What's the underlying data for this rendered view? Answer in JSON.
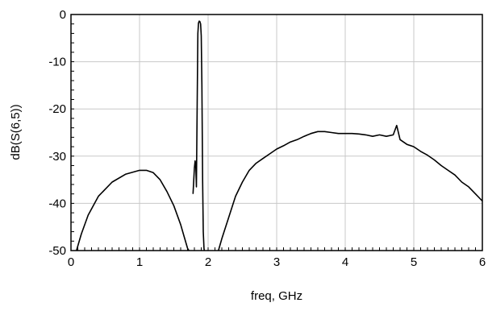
{
  "chart_data": {
    "type": "line",
    "xlabel": "freq, GHz",
    "ylabel": "dB(S(6,5))",
    "xlim": [
      0,
      6
    ],
    "ylim": [
      -50,
      0
    ],
    "x_ticks": [
      "0",
      "1",
      "2",
      "3",
      "4",
      "5",
      "6"
    ],
    "y_ticks": [
      "0",
      "-10",
      "-20",
      "-30",
      "-40",
      "-50"
    ],
    "grid": true,
    "series": [
      {
        "x": [
          0.08,
          0.15,
          0.25,
          0.4,
          0.6,
          0.8,
          1.0,
          1.1,
          1.2,
          1.3,
          1.4,
          1.5,
          1.6,
          1.65,
          1.7,
          1.72
        ],
        "y": [
          -50,
          -46.5,
          -42.5,
          -38.5,
          -35.5,
          -33.8,
          -33.0,
          -33.0,
          -33.5,
          -35.0,
          -37.5,
          -40.5,
          -44.5,
          -47.0,
          -49.5,
          -50
        ]
      },
      {
        "x": [
          1.78,
          1.8,
          1.81,
          1.82,
          1.83,
          1.84,
          1.85,
          1.86,
          1.87,
          1.88,
          1.89,
          1.9,
          1.91,
          1.92,
          1.93,
          1.94,
          1.945
        ],
        "y": [
          -38.0,
          -32.5,
          -31.0,
          -32.0,
          -36.5,
          -20.0,
          -4.0,
          -1.8,
          -1.4,
          -1.5,
          -2.0,
          -4.5,
          -15.0,
          -35.0,
          -46.0,
          -49.5,
          -50
        ]
      },
      {
        "x": [
          2.15,
          2.2,
          2.3,
          2.4,
          2.5,
          2.6,
          2.7,
          2.8,
          2.9,
          3.0,
          3.1,
          3.2,
          3.3,
          3.4,
          3.5,
          3.6,
          3.7,
          3.8,
          3.9,
          4.0,
          4.1,
          4.2,
          4.3,
          4.4,
          4.5,
          4.6,
          4.7,
          4.75,
          4.8,
          4.9,
          5.0,
          5.1,
          5.2,
          5.3,
          5.4,
          5.5,
          5.6,
          5.7,
          5.8,
          5.9,
          6.0
        ],
        "y": [
          -50,
          -47.5,
          -43.0,
          -38.5,
          -35.5,
          -33.0,
          -31.5,
          -30.5,
          -29.5,
          -28.5,
          -27.8,
          -27.0,
          -26.5,
          -25.8,
          -25.2,
          -24.8,
          -24.8,
          -25.0,
          -25.2,
          -25.2,
          -25.2,
          -25.3,
          -25.5,
          -25.8,
          -25.5,
          -25.8,
          -25.5,
          -23.5,
          -26.5,
          -27.5,
          -28.0,
          -29.0,
          -29.8,
          -30.8,
          -32.0,
          -33.0,
          -34.0,
          -35.5,
          -36.5,
          -38.0,
          -39.5
        ]
      }
    ]
  }
}
